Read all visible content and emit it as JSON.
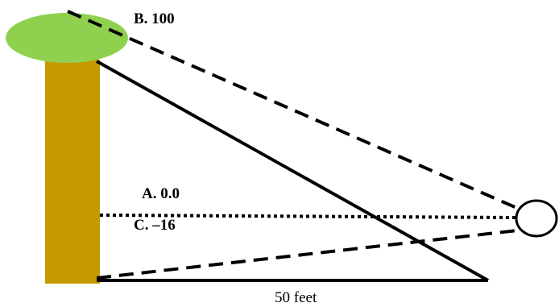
{
  "labels": {
    "b": "B. 100",
    "a": "A. 0.0",
    "c": "C. –16",
    "distance": "50 feet"
  },
  "colors": {
    "trunk": "#c49a00",
    "foliage": "#8fd14f",
    "line": "#000000",
    "background": "#ffffff"
  }
}
